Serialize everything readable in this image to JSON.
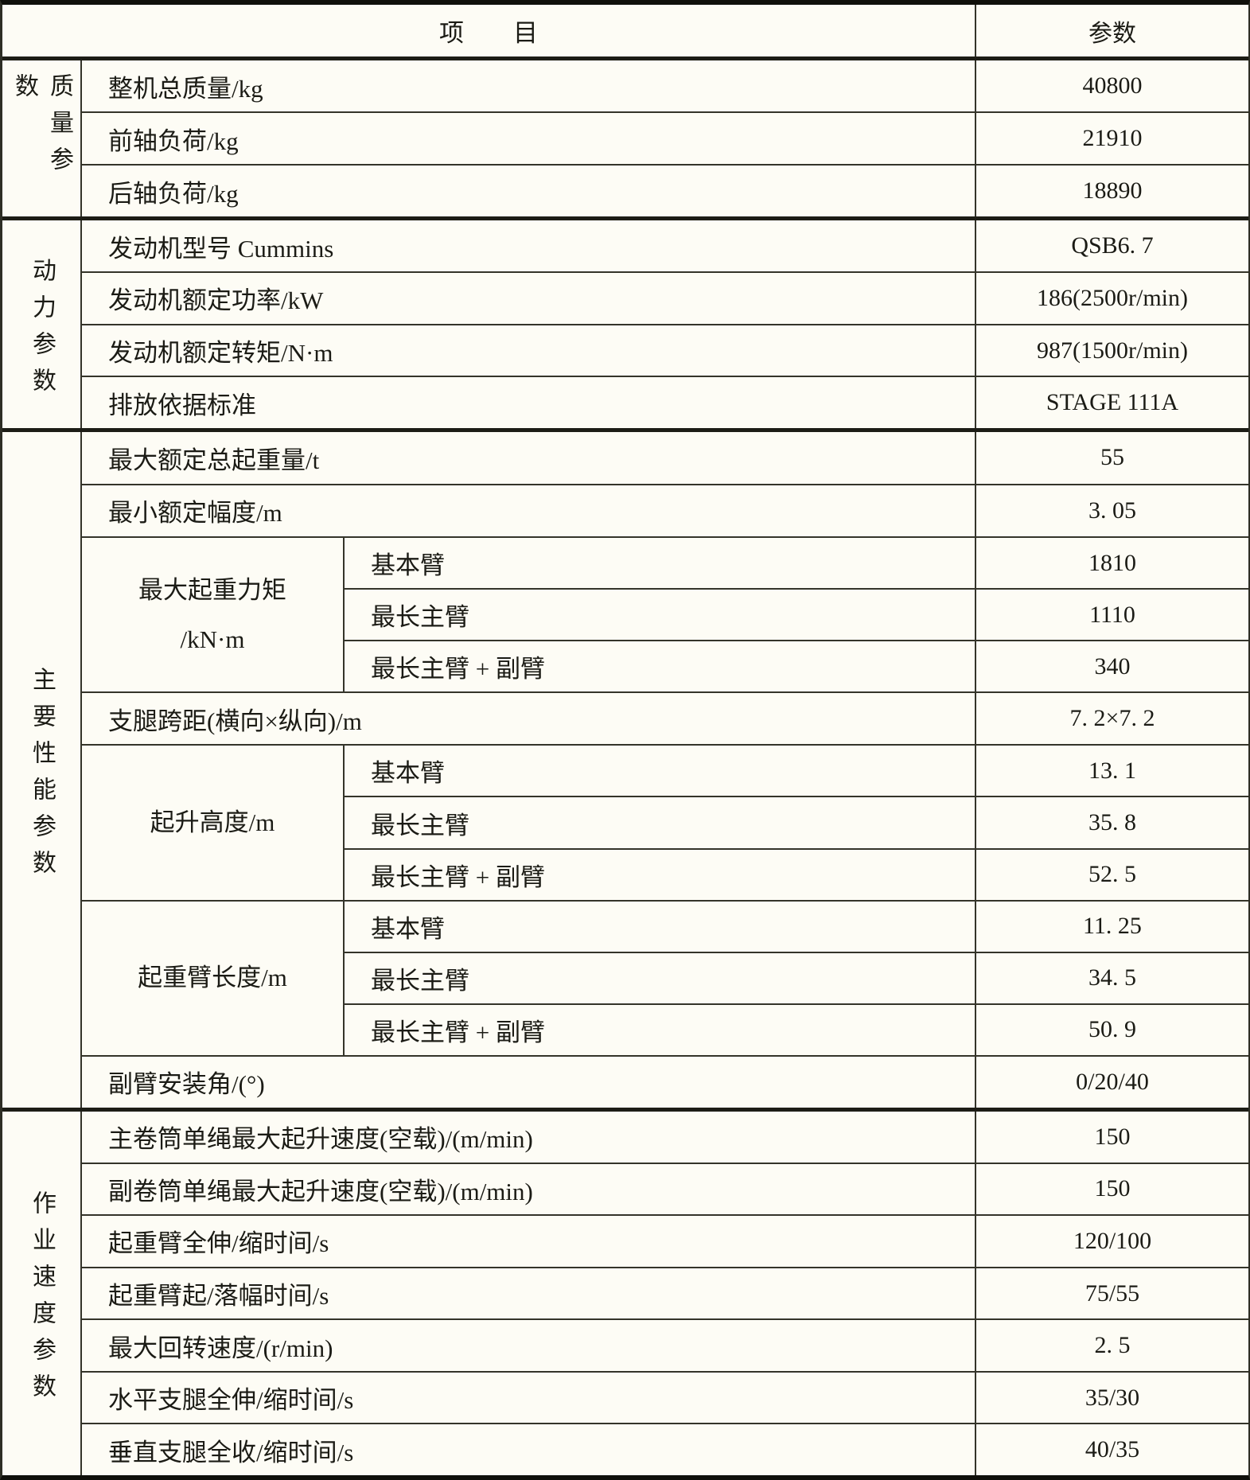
{
  "colors": {
    "background": "#fdfcf5",
    "grid_line": "#34342a",
    "heavy_line": "#10100b",
    "text": "#1b1b15"
  },
  "table": {
    "header": {
      "item": "项　　目",
      "param": "参数"
    },
    "groups": [
      {
        "label": "质量参数",
        "rows": [
          {
            "item": "整机总质量/kg",
            "value": "40800"
          },
          {
            "item": "前轴负荷/kg",
            "value": "21910"
          },
          {
            "item": "后轴负荷/kg",
            "value": "18890"
          }
        ]
      },
      {
        "label": "动力参数",
        "rows": [
          {
            "item": "发动机型号 Cummins",
            "value": "QSB6. 7"
          },
          {
            "item": "发动机额定功率/kW",
            "value": "186(2500r/min)"
          },
          {
            "item": "发动机额定转矩/N·m",
            "value": "987(1500r/min)"
          },
          {
            "item": "排放依据标准",
            "value": "STAGE 111A"
          }
        ]
      },
      {
        "label": "主要性能参数",
        "rows": [
          {
            "item": "最大额定总起重量/t",
            "value": "55"
          },
          {
            "item": "最小额定幅度/m",
            "value": "3. 05"
          },
          {
            "label": "最大起重力矩\n/kN·m",
            "subrows": [
              {
                "item": "基本臂",
                "value": "1810"
              },
              {
                "item": "最长主臂",
                "value": "1110"
              },
              {
                "item": "最长主臂 + 副臂",
                "value": "340"
              }
            ]
          },
          {
            "item": "支腿跨距(横向×纵向)/m",
            "value": "7. 2×7. 2"
          },
          {
            "label": "起升高度/m",
            "subrows": [
              {
                "item": "基本臂",
                "value": "13. 1"
              },
              {
                "item": "最长主臂",
                "value": "35. 8"
              },
              {
                "item": "最长主臂 + 副臂",
                "value": "52. 5"
              }
            ]
          },
          {
            "label": "起重臂长度/m",
            "subrows": [
              {
                "item": "基本臂",
                "value": "11. 25"
              },
              {
                "item": "最长主臂",
                "value": "34. 5"
              },
              {
                "item": "最长主臂 + 副臂",
                "value": "50. 9"
              }
            ]
          },
          {
            "item": "副臂安装角/(°)",
            "value": "0/20/40"
          }
        ]
      },
      {
        "label": "作业速度参数",
        "rows": [
          {
            "item": "主卷筒单绳最大起升速度(空载)/(m/min)",
            "value": "150"
          },
          {
            "item": "副卷筒单绳最大起升速度(空载)/(m/min)",
            "value": "150"
          },
          {
            "item": "起重臂全伸/缩时间/s",
            "value": "120/100"
          },
          {
            "item": "起重臂起/落幅时间/s",
            "value": "75/55"
          },
          {
            "item": "最大回转速度/(r/min)",
            "value": "2. 5"
          },
          {
            "item": "水平支腿全伸/缩时间/s",
            "value": "35/30"
          },
          {
            "item": "垂直支腿全收/缩时间/s",
            "value": "40/35"
          }
        ]
      }
    ]
  }
}
